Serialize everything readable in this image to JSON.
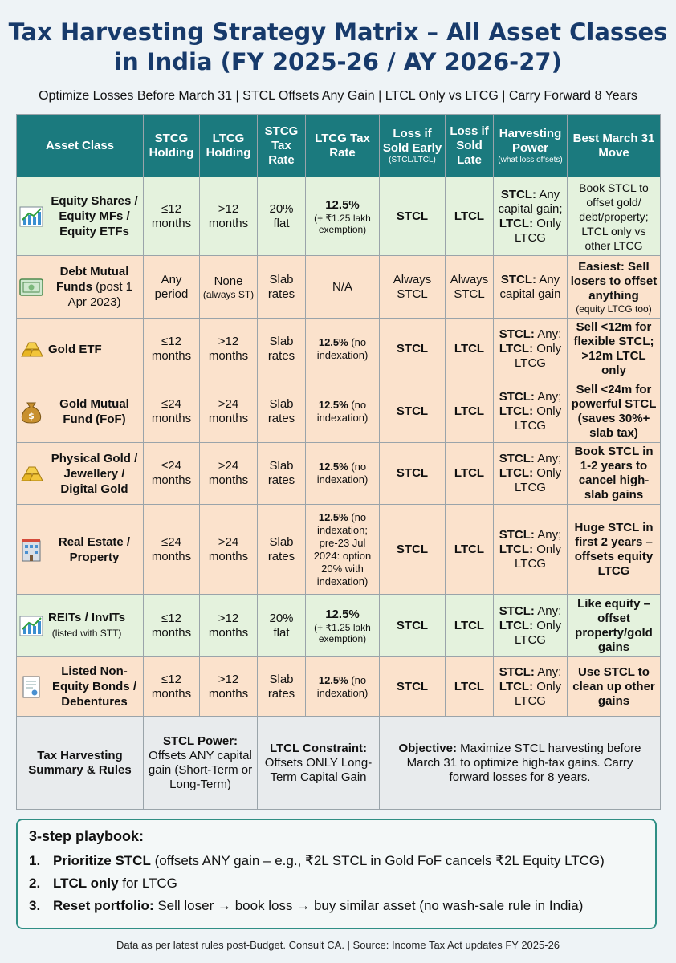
{
  "title": "Tax Harvesting Strategy Matrix – All Asset Classes in India (FY 2025-26 / AY 2026-27)",
  "subtitle": "Optimize Losses Before March 31 | STCL Offsets Any Gain | LTCL Only vs LTCG | Carry Forward 8 Years",
  "headers": {
    "asset": "Asset Class",
    "stcg_holding": "STCG Holding",
    "ltcg_holding": "LTCG Holding",
    "stcg_rate": "STCG Tax Rate",
    "ltcg_rate": "LTCG Tax Rate",
    "loss_early": "Loss if Sold Early",
    "loss_early_sub": "(STCL/LTCL)",
    "loss_late": "Loss if Sold Late",
    "power": "Harvesting Power",
    "power_sub": "(what loss offsets)",
    "move": "Best March 31 Move"
  },
  "rows": [
    {
      "icon": "chart-up-icon",
      "name": "Equity Shares / Equity MFs / Equity ETFs",
      "name_extra": "",
      "stcg": "≤12 months",
      "ltcg": ">12 months",
      "stcg_rate": "20% flat",
      "ltcg_rate": "12.5%",
      "ltcg_rate_note": "(+ ₹1.25 lakh exemption)",
      "early": "STCL",
      "late": "LTCL",
      "power_a": "STCL:",
      "power_a_text": " Any capital gain;",
      "power_b": "LTCL:",
      "power_b_text": " Only LTCG",
      "move": "Book STCL to offset gold/ debt/property; LTCL only vs other LTCG"
    },
    {
      "icon": "bond-certificate-icon",
      "name": "Debt Mutual Funds",
      "name_extra": " (post 1 Apr 2023)",
      "stcg": "Any period",
      "ltcg": "None",
      "ltcg_note": "(always ST)",
      "stcg_rate": "Slab rates",
      "ltcg_rate": "N/A",
      "early": "Always STCL",
      "late": "Always STCL",
      "power_a": "STCL:",
      "power_a_text": " Any capital gain",
      "move": "Easiest: Sell losers to offset anything",
      "move_note": "(equity LTCG too)"
    },
    {
      "icon": "gold-bars-icon",
      "name": "Gold ETF",
      "stcg": "≤12 months",
      "ltcg": ">12 months",
      "stcg_rate": "Slab rates",
      "ltcg_rate": "12.5%",
      "ltcg_rate_note": "(no indexation)",
      "early": "STCL",
      "late": "LTCL",
      "power_a": "STCL:",
      "power_a_text": " Any;",
      "power_b": "LTCL:",
      "power_b_text": " Only LTCG",
      "move": "Sell <12m for flexible STCL; >12m LTCL only"
    },
    {
      "icon": "money-bag-icon",
      "name": "Gold Mutual Fund (FoF)",
      "stcg": "≤24 months",
      "ltcg": ">24 months",
      "stcg_rate": "Slab rates",
      "ltcg_rate": "12.5%",
      "ltcg_rate_note": "(no indexation)",
      "early": "STCL",
      "late": "LTCL",
      "power_a": "STCL:",
      "power_a_text": " Any;",
      "power_b": "LTCL:",
      "power_b_text": " Only LTCG",
      "move": "Sell <24m for powerful STCL (saves 30%+ slab tax)"
    },
    {
      "icon": "gold-bars-icon",
      "name": "Physical Gold / Jewellery / Digital Gold",
      "stcg": "≤24 months",
      "ltcg": ">24 months",
      "stcg_rate": "Slab rates",
      "ltcg_rate": "12.5%",
      "ltcg_rate_note": "(no indexation)",
      "early": "STCL",
      "late": "LTCL",
      "power_a": "STCL:",
      "power_a_text": " Any;",
      "power_b": "LTCL:",
      "power_b_text": " Only LTCG",
      "move": "Book STCL in 1-2 years to cancel high-slab gains"
    },
    {
      "icon": "building-icon",
      "name": "Real Estate / Property",
      "stcg": "≤24 months",
      "ltcg": ">24 months",
      "stcg_rate": "Slab rates",
      "ltcg_rate": "12.5%",
      "ltcg_rate_note": "(no indexation; pre-23 Jul 2024: option 20% with indexation)",
      "early": "STCL",
      "late": "LTCL",
      "power_a": "STCL:",
      "power_a_text": " Any;",
      "power_b": "LTCL:",
      "power_b_text": " Only LTCG",
      "move": "Huge STCL in first 2 years – offsets equity LTCG"
    },
    {
      "icon": "chart-up-icon",
      "name": "REITs / InvITs",
      "name_sub": "(listed with STT)",
      "stcg": "≤12 months",
      "ltcg": ">12 months",
      "stcg_rate": "20% flat",
      "ltcg_rate": "12.5%",
      "ltcg_rate_note": "(+ ₹1.25 lakh exemption)",
      "early": "STCL",
      "late": "LTCL",
      "power_a": "STCL:",
      "power_a_text": " Any;",
      "power_b": "LTCL:",
      "power_b_text": " Only LTCG",
      "move": "Like equity – offset property/gold gains"
    },
    {
      "icon": "bond-document-icon",
      "name": "Listed Non-Equity Bonds / Debentures",
      "stcg": "≤12 months",
      "ltcg": ">12 months",
      "stcg_rate": "Slab rates",
      "ltcg_rate": "12.5%",
      "ltcg_rate_note": "(no indexation)",
      "early": "STCL",
      "late": "LTCL",
      "power_a": "STCL:",
      "power_a_text": " Any;",
      "power_b": "LTCL:",
      "power_b_text": " Only LTCG",
      "move": "Use STCL to clean up other gains"
    }
  ],
  "summary": {
    "label": "Tax Harvesting Summary & Rules",
    "stcl_title": "STCL Power:",
    "stcl_text": "Offsets ANY capital gain (Short-Term or Long-Term)",
    "ltcl_title": "LTCL Constraint:",
    "ltcl_text": "Offsets ONLY Long-Term Capital Gain",
    "objective_title": "Objective:",
    "objective_text": " Maximize STCL harvesting before March 31 to optimize high-tax gains. Carry forward losses for 8 years."
  },
  "playbook": {
    "title": "3-step playbook:",
    "steps": [
      {
        "num": "1.",
        "bold": "Prioritize STCL",
        "text": " (offsets ANY gain – e.g., ₹2L STCL in Gold FoF cancels ₹2L Equity LTCG)"
      },
      {
        "num": "2.",
        "bold": "LTCL only",
        "text": " for LTCG"
      },
      {
        "num": "3.",
        "bold": "Reset portfolio:",
        "text": " Sell loser → book loss → buy similar asset (no wash-sale rule in India)"
      }
    ]
  },
  "footer": "Data as per latest rules post-Budget. Consult CA. | Source: Income Tax Act updates FY 2025-26"
}
